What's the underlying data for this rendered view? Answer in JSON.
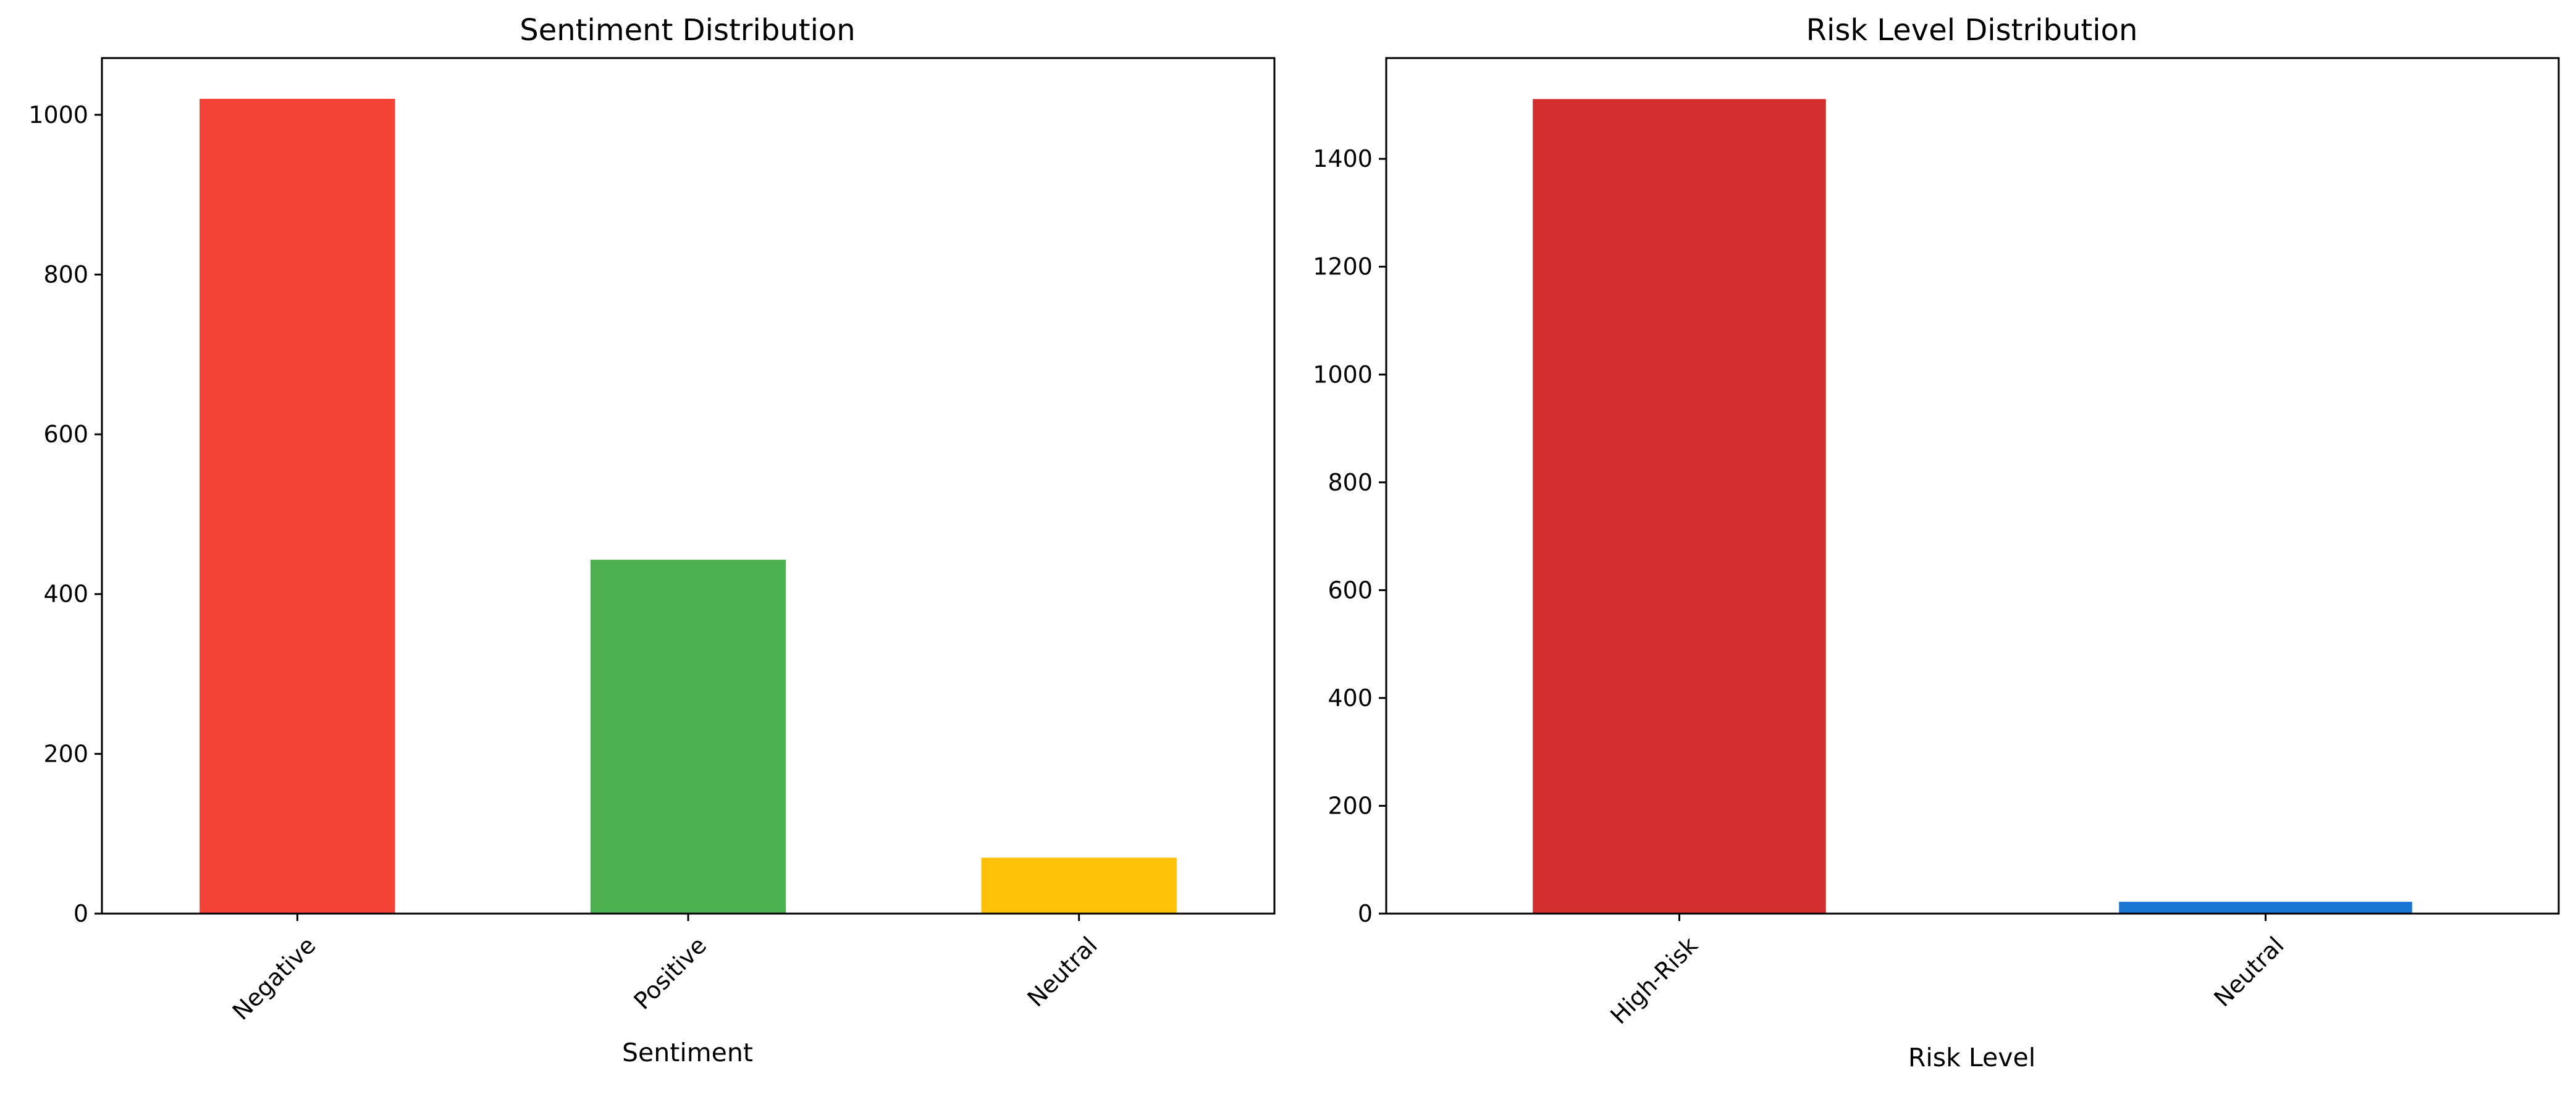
{
  "chart_data": [
    {
      "type": "bar",
      "title": "Sentiment Distribution",
      "xlabel": "Sentiment",
      "ylabel": "",
      "categories": [
        "Negative",
        "Positive",
        "Neutral"
      ],
      "values": [
        1020,
        443,
        70
      ],
      "colors": [
        "#F44336",
        "#4CAF50",
        "#FFC107"
      ],
      "ylim": [
        0,
        1071
      ],
      "yticks": [
        0,
        200,
        400,
        600,
        800,
        1000
      ],
      "grid": false,
      "legend": "none"
    },
    {
      "type": "bar",
      "title": "Risk Level Distribution",
      "xlabel": "Risk Level",
      "ylabel": "",
      "categories": [
        "High-Risk",
        "Neutral"
      ],
      "values": [
        1511,
        22
      ],
      "colors": [
        "#D32F2F",
        "#1976D2"
      ],
      "ylim": [
        0,
        1587
      ],
      "yticks": [
        0,
        200,
        400,
        600,
        800,
        1000,
        1200,
        1400
      ],
      "grid": false,
      "legend": "none"
    }
  ]
}
